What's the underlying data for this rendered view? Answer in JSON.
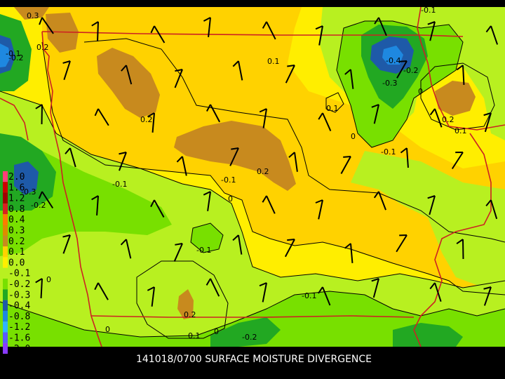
{
  "caption": "141018/0700 SURFACE MOISTURE DIVERGENCE",
  "legend": {
    "labels": [
      "2.0",
      "1.6",
      "1.2",
      "0.8",
      "0.4",
      "0.3",
      "0.2",
      "0.1",
      "0.0",
      "-0.1",
      "-0.2",
      "-0.3",
      "-0.4",
      "-0.8",
      "-1.2",
      "-1.6",
      "-2.0"
    ],
    "colors": [
      "#ff3c78",
      "#cc0000",
      "#a00000",
      "#d82020",
      "#ff7a00",
      "#e08a00",
      "#c88a1e",
      "#ffd200",
      "#ffee00",
      "#b8f020",
      "#78e000",
      "#22a822",
      "#1e5aa8",
      "#1e88e0",
      "#30b4ff",
      "#5a5aff",
      "#8a3aff"
    ]
  },
  "colors": {
    "bg": "#000000",
    "field_base": "#ffd200",
    "pos_high": "#c88a1e",
    "zero_band": "#ffee00",
    "neg_01": "#b8f020",
    "neg_02": "#78e000",
    "neg_03": "#22a822",
    "neg_04": "#1e5aa8",
    "neg_08": "#1e88e0",
    "boundary": "#cc2222"
  },
  "contour_labels": [
    {
      "text": "0.3",
      "value": 0.3
    },
    {
      "text": "0.2",
      "value": 0.2
    },
    {
      "text": "-0.2",
      "value": -0.2
    },
    {
      "text": "0.2",
      "value": 0.2
    },
    {
      "text": "0.1",
      "value": 0.1
    },
    {
      "text": "0.1",
      "value": 0.1
    },
    {
      "text": "0",
      "value": 0
    },
    {
      "text": "-0.4",
      "value": -0.4
    },
    {
      "text": "-0.2",
      "value": -0.2
    },
    {
      "text": "-0.3",
      "value": -0.3
    },
    {
      "text": "0",
      "value": 0
    },
    {
      "text": "-0.1",
      "value": -0.1
    },
    {
      "text": "0.2",
      "value": 0.2
    },
    {
      "text": "0.1",
      "value": 0.1
    },
    {
      "text": "-0.1",
      "value": -0.1
    },
    {
      "text": "0.2",
      "value": 0.2
    },
    {
      "text": "-0.1",
      "value": -0.1
    },
    {
      "text": "-0.1",
      "value": -0.1
    },
    {
      "text": "0",
      "value": 0
    },
    {
      "text": "-0.3",
      "value": -0.3
    },
    {
      "text": "-0.2",
      "value": -0.2
    },
    {
      "text": "-0.1",
      "value": -0.1
    },
    {
      "text": "0",
      "value": 0
    },
    {
      "text": "0.2",
      "value": 0.2
    },
    {
      "text": "0.1",
      "value": 0.1
    },
    {
      "text": "0",
      "value": 0
    },
    {
      "text": "-0.2",
      "value": -0.2
    },
    {
      "text": "-0.1",
      "value": -0.1
    },
    {
      "text": "0",
      "value": 0
    },
    {
      "text": "-0.1",
      "value": -0.1
    }
  ]
}
